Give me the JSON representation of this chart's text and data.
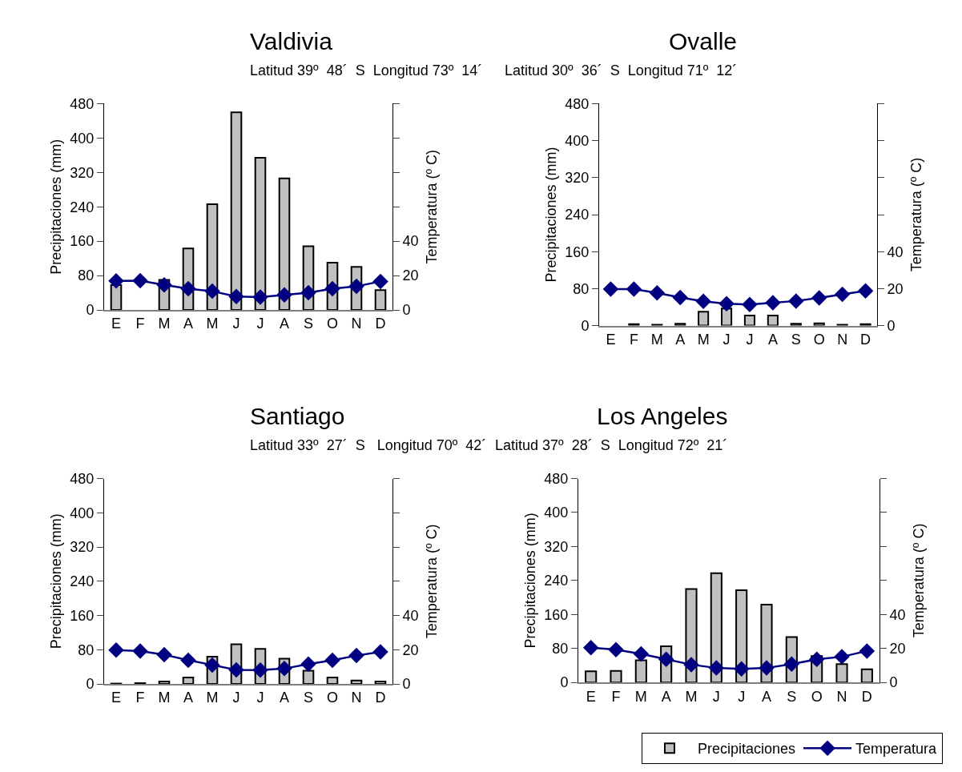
{
  "chart_data": [
    {
      "type": "bar",
      "title": "Valdivia",
      "subtitle": "Latitud 39º  48´  S  Longitud 73º  14´",
      "categories": [
        "E",
        "F",
        "M",
        "A",
        "M",
        "J",
        "J",
        "A",
        "S",
        "O",
        "N",
        "D"
      ],
      "ylabel": "Precipitaciones (mm)",
      "y2label": "Temperatura (º C)",
      "ylim": [
        0,
        480
      ],
      "yticks": [
        0,
        80,
        160,
        240,
        320,
        400,
        480
      ],
      "y2lim": [
        0,
        120
      ],
      "y2ticks": [
        0,
        20,
        40,
        {
          "value": 60,
          "label": null
        },
        {
          "value": 80,
          "label": null
        },
        {
          "value": 100,
          "label": null
        },
        {
          "value": 120,
          "label": null
        }
      ],
      "marker": "diamond",
      "legend": "bottom right",
      "series": [
        {
          "name": "Precipitaciones",
          "color": "#c0c0c0",
          "values": [
            58,
            null,
            70,
            143,
            246,
            460,
            354,
            306,
            148,
            110,
            100,
            46
          ]
        },
        {
          "name": "Temperatura",
          "type": "line",
          "axis": "y2",
          "color": "#000080",
          "values": [
            16.9,
            17,
            14.6,
            12.4,
            10.9,
            7.8,
            7.5,
            8.7,
            10,
            12.4,
            13.7,
            16.6
          ]
        }
      ]
    },
    {
      "type": "bar",
      "title": "Ovalle",
      "subtitle": "Latitud 30º  36´  S  Longitud 71º  12´",
      "categories": [
        "E",
        "F",
        "M",
        "A",
        "M",
        "J",
        "J",
        "A",
        "S",
        "O",
        "N",
        "D"
      ],
      "ylabel": "Precipitaciones (mm)",
      "y2label": "Temperatura (º C)",
      "ylim": [
        0,
        480
      ],
      "yticks": [
        0,
        80,
        160,
        240,
        320,
        400,
        480
      ],
      "y2lim": [
        0,
        120
      ],
      "y2ticks": [
        0,
        20,
        40,
        {
          "value": 60,
          "label": null
        },
        {
          "value": 80,
          "label": null
        },
        {
          "value": 100,
          "label": null
        },
        {
          "value": 120,
          "label": null
        }
      ],
      "marker": "diamond",
      "series": [
        {
          "color": "#c0c0c0",
          "values": [
            null,
            3,
            2,
            4,
            30,
            37,
            22,
            22,
            4,
            5,
            2,
            3
          ]
        },
        {
          "type": "line",
          "axis": "y2",
          "color": "#000080",
          "values": [
            19.7,
            19.7,
            17.7,
            15.2,
            13.1,
            11.8,
            11.4,
            12.4,
            13.3,
            15,
            16.9,
            18.8
          ]
        }
      ]
    },
    {
      "type": "bar",
      "title": "Santiago",
      "subtitle": "Latitud 33º  27´  S   Longitud 70º  42´",
      "categories": [
        "E",
        "F",
        "M",
        "A",
        "M",
        "J",
        "J",
        "A",
        "S",
        "O",
        "N",
        "D"
      ],
      "ylabel": "Precipitaciones (mm)",
      "y2label": "Temperatura (º C)",
      "ylim": [
        0,
        480
      ],
      "yticks": [
        0,
        80,
        160,
        240,
        320,
        400,
        480
      ],
      "y2lim": [
        0,
        120
      ],
      "y2ticks": [
        0,
        20,
        40,
        {
          "value": 60,
          "label": null
        },
        {
          "value": 80,
          "label": null
        },
        {
          "value": 100,
          "label": null
        },
        {
          "value": 120,
          "label": null
        }
      ],
      "marker": "diamond",
      "series": [
        {
          "color": "#c0c0c0",
          "values": [
            1,
            2,
            6,
            15,
            64,
            93,
            82,
            59,
            31,
            15,
            8,
            6
          ]
        },
        {
          "type": "line",
          "axis": "y2",
          "color": "#000080",
          "values": [
            19.8,
            19.2,
            17.1,
            13.9,
            11.1,
            8.2,
            8.1,
            9,
            11.6,
            13.9,
            16.6,
            18.8
          ]
        }
      ]
    },
    {
      "type": "bar",
      "title": "Los Angeles",
      "subtitle": "Latitud 37º  28´  S  Longitud 72º  21´",
      "categories": [
        "E",
        "F",
        "M",
        "A",
        "M",
        "J",
        "J",
        "A",
        "S",
        "O",
        "N",
        "D"
      ],
      "ylabel": "Precipitaciones (mm)",
      "y2label": "Temperatura (º C)",
      "ylim": [
        0,
        480
      ],
      "yticks": [
        0,
        80,
        160,
        240,
        320,
        400,
        480
      ],
      "y2lim": [
        0,
        120
      ],
      "y2ticks": [
        0,
        20,
        40,
        {
          "value": 60,
          "label": null
        },
        {
          "value": 80,
          "label": null
        },
        {
          "value": 100,
          "label": null
        },
        {
          "value": 120,
          "label": null
        }
      ],
      "marker": "diamond",
      "series": [
        {
          "color": "#c0c0c0",
          "values": [
            26,
            27,
            52,
            85,
            220,
            257,
            217,
            183,
            107,
            62,
            43,
            31
          ]
        },
        {
          "type": "line",
          "axis": "y2",
          "color": "#000080",
          "values": [
            20.5,
            19.3,
            16.8,
            13.6,
            10.5,
            8.5,
            8,
            8.5,
            10.8,
            13.6,
            15.1,
            18.5
          ]
        }
      ]
    }
  ]
}
